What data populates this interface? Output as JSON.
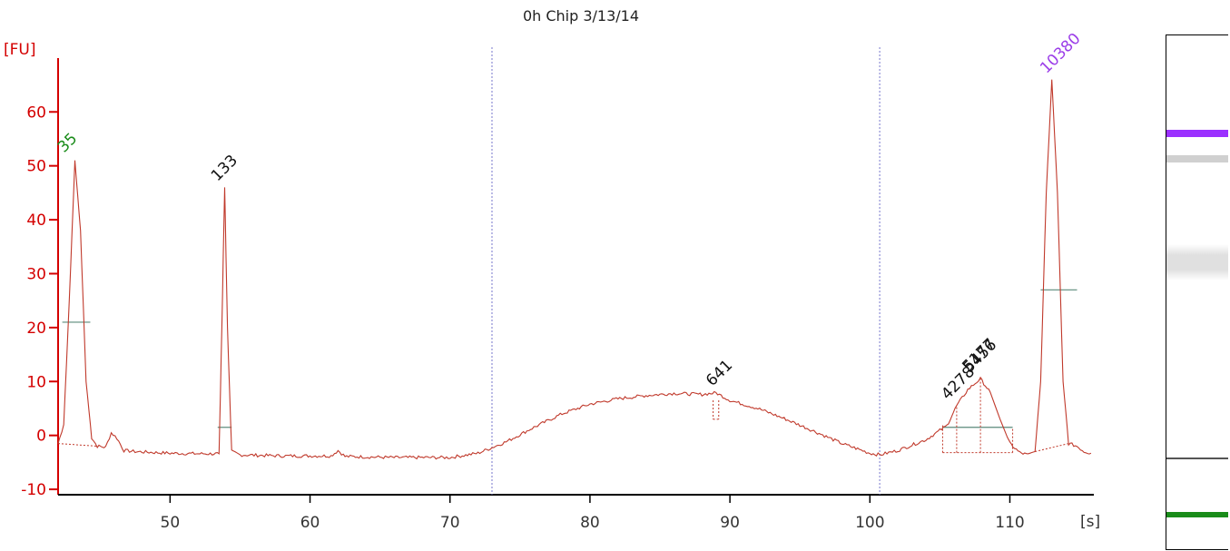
{
  "chart_data": {
    "type": "line",
    "title": "0h Chip 3/13/14",
    "ylabel": "[FU]",
    "xlabel": "[s]",
    "xlim": [
      42,
      116
    ],
    "ylim": [
      -11,
      72
    ],
    "xticks": [
      50,
      60,
      70,
      80,
      90,
      100,
      110
    ],
    "yticks": [
      -10,
      0,
      10,
      20,
      30,
      40,
      50,
      60
    ],
    "grid": false,
    "colors": {
      "trace": "#c0392b",
      "axis": "#d40000",
      "lower_marker": "#1a8c1a",
      "upper_marker": "#9b3de8",
      "baseline_marker": "#5a8a7a",
      "region_line": "#7777cc"
    },
    "region_lines_x": [
      73.0,
      100.7
    ],
    "peaks": [
      {
        "label": "35",
        "x": 43.2,
        "y": 51.0,
        "kind": "lower_marker"
      },
      {
        "label": "133",
        "x": 53.9,
        "y": 46.0,
        "kind": "peak"
      },
      {
        "label": "641",
        "x": 89.0,
        "y": 8.0,
        "kind": "peak"
      },
      {
        "label": "4278",
        "x": 106.2,
        "y": 5.5,
        "kind": "peak"
      },
      {
        "label": "5456",
        "x": 107.9,
        "y": 10.5,
        "kind": "peak"
      },
      {
        "label": "5177",
        "x": 107.7,
        "y": 10.0,
        "kind": "peak"
      },
      {
        "label": "10380",
        "x": 113.0,
        "y": 66.0,
        "kind": "upper_marker"
      }
    ],
    "trace": [
      [
        42.0,
        -1.5
      ],
      [
        42.4,
        2.0
      ],
      [
        42.8,
        25.0
      ],
      [
        43.2,
        51.0
      ],
      [
        43.6,
        38.0
      ],
      [
        44.0,
        10.0
      ],
      [
        44.4,
        -0.5
      ],
      [
        44.8,
        -2.0
      ],
      [
        45.4,
        -2.2
      ],
      [
        45.8,
        0.5
      ],
      [
        46.2,
        -0.5
      ],
      [
        46.7,
        -2.8
      ],
      [
        47.5,
        -3.0
      ],
      [
        50.0,
        -3.3
      ],
      [
        52.0,
        -3.4
      ],
      [
        53.5,
        -3.4
      ],
      [
        53.7,
        20.0
      ],
      [
        53.9,
        46.0
      ],
      [
        54.1,
        20.0
      ],
      [
        54.4,
        -3.0
      ],
      [
        55.0,
        -3.6
      ],
      [
        58.0,
        -3.8
      ],
      [
        61.5,
        -3.8
      ],
      [
        62.0,
        -2.8
      ],
      [
        62.5,
        -3.9
      ],
      [
        66.0,
        -4.1
      ],
      [
        70.0,
        -4.1
      ],
      [
        72.0,
        -3.3
      ],
      [
        74.0,
        -1.2
      ],
      [
        76.0,
        1.5
      ],
      [
        78.0,
        4.0
      ],
      [
        80.0,
        5.8
      ],
      [
        82.0,
        6.8
      ],
      [
        84.0,
        7.4
      ],
      [
        86.0,
        7.8
      ],
      [
        88.0,
        7.6
      ],
      [
        89.0,
        7.9
      ],
      [
        90.0,
        6.5
      ],
      [
        92.0,
        5.0
      ],
      [
        94.0,
        3.0
      ],
      [
        96.0,
        0.8
      ],
      [
        98.0,
        -1.5
      ],
      [
        100.0,
        -3.3
      ],
      [
        100.7,
        -3.6
      ],
      [
        102.0,
        -2.8
      ],
      [
        104.0,
        -0.8
      ],
      [
        105.5,
        1.8
      ],
      [
        106.2,
        5.5
      ],
      [
        107.0,
        8.5
      ],
      [
        107.9,
        10.5
      ],
      [
        108.6,
        8.0
      ],
      [
        109.3,
        3.0
      ],
      [
        110.0,
        -1.5
      ],
      [
        110.7,
        -3.2
      ],
      [
        111.3,
        -3.6
      ],
      [
        111.8,
        -3.0
      ],
      [
        112.2,
        10.0
      ],
      [
        112.6,
        45.0
      ],
      [
        113.0,
        66.0
      ],
      [
        113.4,
        45.0
      ],
      [
        113.8,
        10.0
      ],
      [
        114.2,
        -1.5
      ],
      [
        114.8,
        -2.0
      ],
      [
        115.3,
        -3.0
      ],
      [
        115.8,
        -3.3
      ]
    ],
    "baseline_segments": [
      {
        "x1": 42.3,
        "y1": 21.0,
        "x2": 44.3,
        "y2": 21.0
      },
      {
        "x1": 53.4,
        "y1": 1.5,
        "x2": 54.4,
        "y2": 1.5
      },
      {
        "x1": 105.2,
        "y1": 1.5,
        "x2": 110.2,
        "y2": 1.5
      },
      {
        "x1": 112.2,
        "y1": 27.0,
        "x2": 114.8,
        "y2": 27.0
      }
    ]
  },
  "gel_lane": {
    "bands": [
      {
        "position": 0.19,
        "color": "#9b30ff",
        "thickness": 8
      },
      {
        "position": 0.24,
        "color": "#d0d0d0",
        "thickness": 8
      },
      {
        "position": 0.44,
        "color": "#e0e0e0",
        "thickness": 40
      },
      {
        "position": 0.82,
        "color": "#555555",
        "thickness": 2
      },
      {
        "position": 0.93,
        "color": "#1a8c1a",
        "thickness": 6
      }
    ]
  }
}
